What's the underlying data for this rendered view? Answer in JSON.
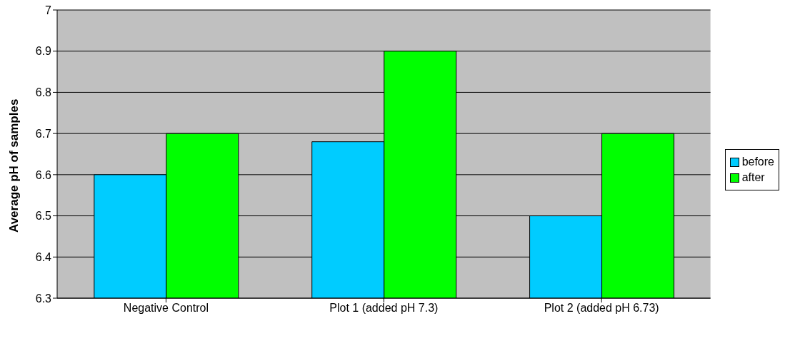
{
  "chart_data": {
    "type": "bar",
    "ylabel": "Average pH of samples",
    "categories": [
      "Negative Control",
      "Plot 1 (added pH 7.3)",
      "Plot 2 (added pH 6.73)"
    ],
    "series": [
      {
        "name": "before",
        "color": "#00ccff",
        "values": [
          6.6,
          6.68,
          6.5
        ]
      },
      {
        "name": "after",
        "color": "#00ff00",
        "values": [
          6.7,
          6.9,
          6.7
        ]
      }
    ],
    "ylim": [
      6.3,
      7
    ],
    "yticks": [
      6.3,
      6.4,
      6.5,
      6.6,
      6.7,
      6.8,
      6.9,
      7
    ],
    "grid": "y",
    "legend": "right"
  }
}
